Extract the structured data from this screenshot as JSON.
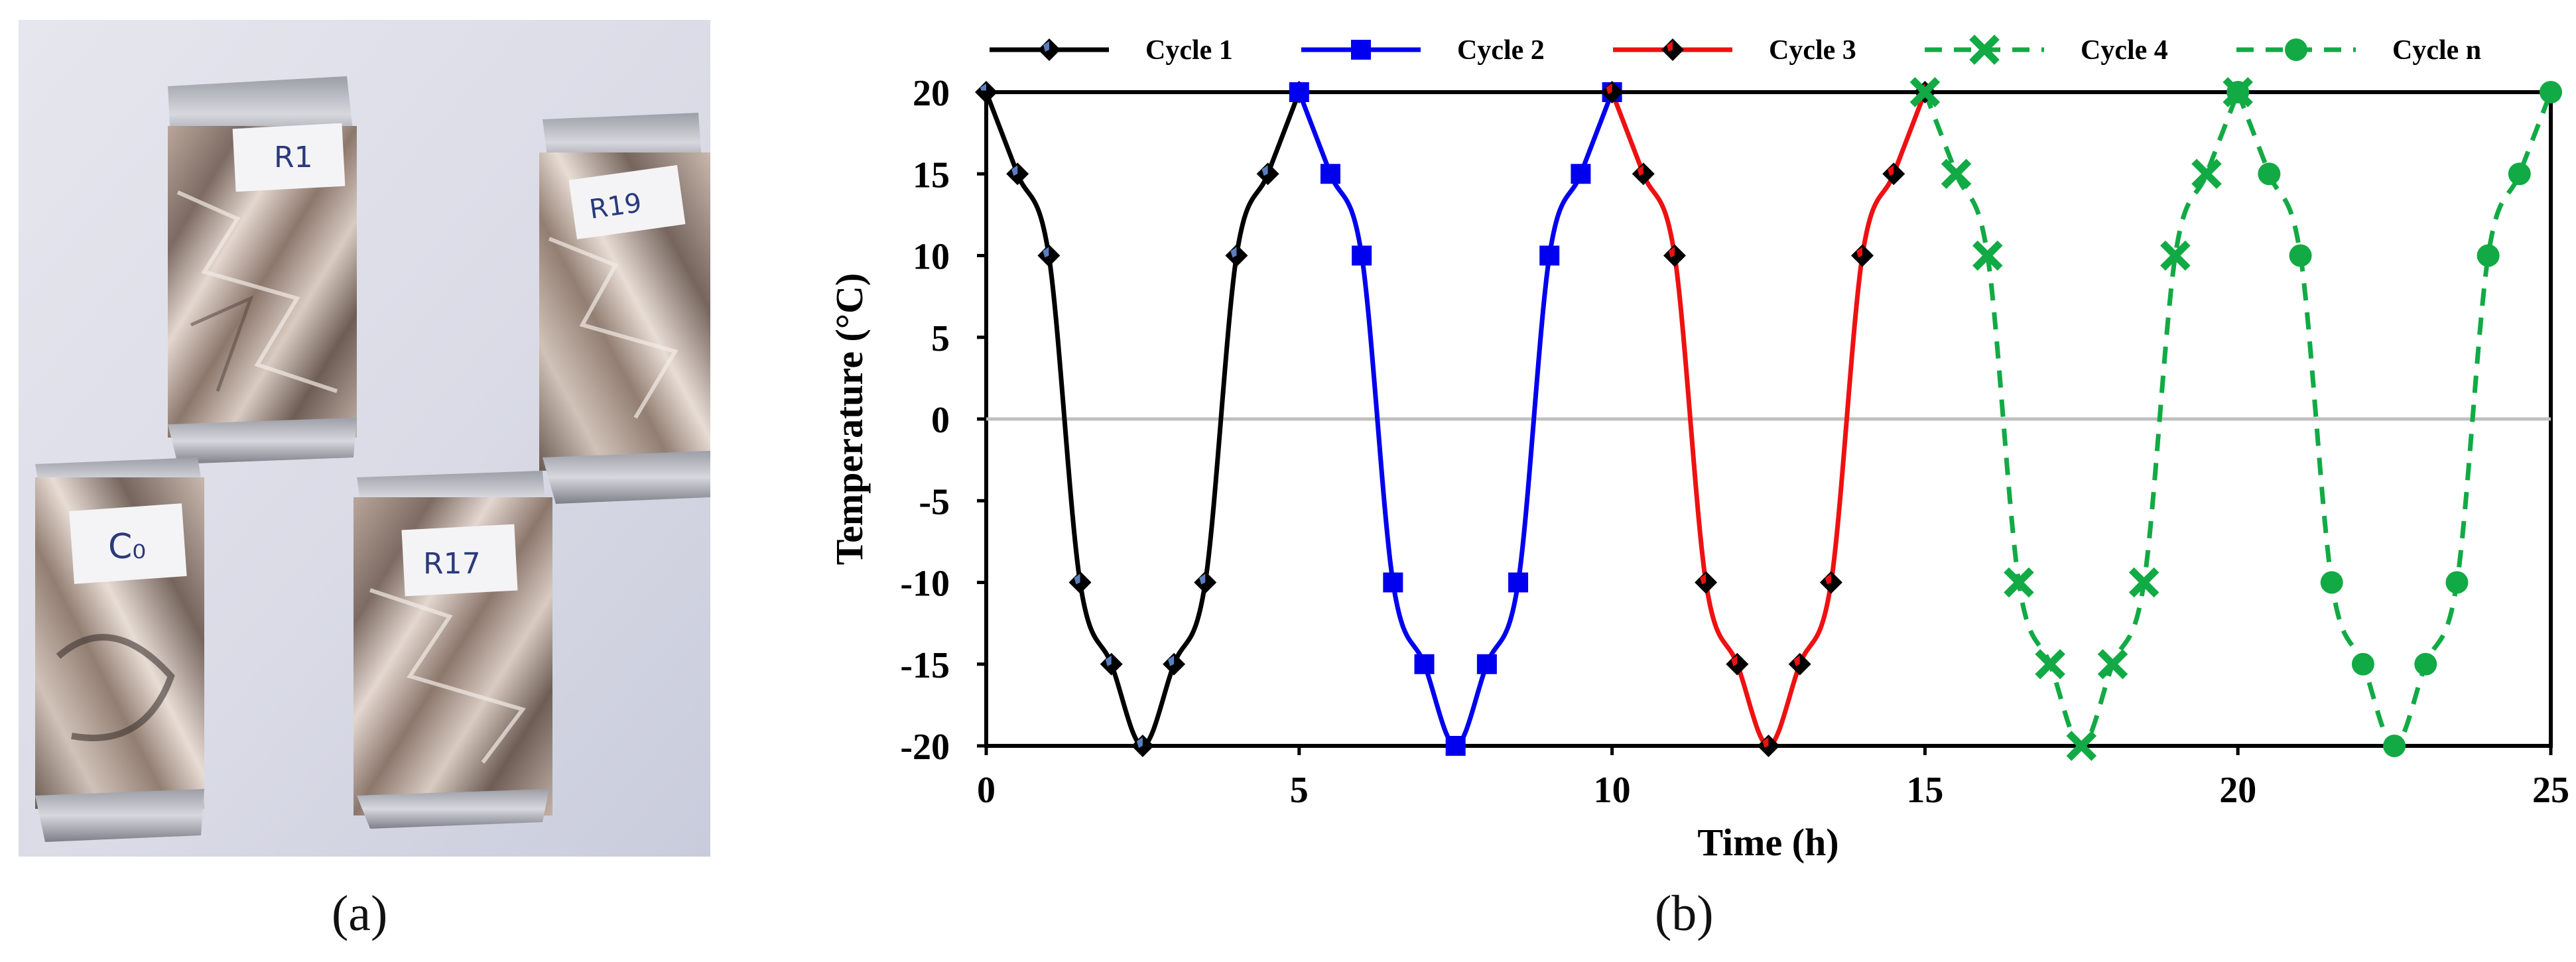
{
  "panel_a": {
    "caption": "(a)",
    "sample_labels": [
      "R1",
      "R19",
      "C₀",
      "R17"
    ]
  },
  "panel_b": {
    "caption": "(b)"
  },
  "colors": {
    "cycle1": "#000000",
    "cycle2": "#0000ee",
    "cycle3": "#ee1111",
    "cycle4": "#11aa44",
    "cyclen": "#11aa44",
    "marker_blue": "#5a7fbf",
    "zero_line": "#bfbfbf"
  },
  "chart_data": {
    "type": "line",
    "title": "",
    "xlabel": "Time (h)",
    "ylabel": "Temperature (°C)",
    "xlim": [
      0,
      25
    ],
    "ylim": [
      -20,
      20
    ],
    "xticks": [
      0,
      5,
      10,
      15,
      20,
      25
    ],
    "yticks": [
      20,
      15,
      10,
      5,
      0,
      -5,
      -10,
      -15,
      -20
    ],
    "legend_position": "top",
    "series": [
      {
        "name": "Cycle 1",
        "color": "#000000",
        "dash": "solid",
        "marker": "diamond",
        "marker_fill": "#000000",
        "marker_inner": "#5a7fbf",
        "x": [
          0,
          0.5,
          1,
          1.5,
          2,
          2.5,
          3,
          3.5,
          4,
          4.5,
          5
        ],
        "y": [
          20,
          15,
          10,
          -10,
          -15,
          -20,
          -15,
          -10,
          10,
          15,
          20
        ]
      },
      {
        "name": "Cycle 2",
        "color": "#0000ee",
        "dash": "solid",
        "marker": "square",
        "x": [
          5,
          5.5,
          6,
          6.5,
          7,
          7.5,
          8,
          8.5,
          9,
          9.5,
          10
        ],
        "y": [
          20,
          15,
          10,
          -10,
          -15,
          -20,
          -15,
          -10,
          10,
          15,
          20
        ]
      },
      {
        "name": "Cycle 3",
        "color": "#ee1111",
        "dash": "solid",
        "marker": "diamond",
        "marker_fill": "#000000",
        "marker_inner": "#ee1111",
        "x": [
          10,
          10.5,
          11,
          11.5,
          12,
          12.5,
          13,
          13.5,
          14,
          14.5,
          15
        ],
        "y": [
          20,
          15,
          10,
          -10,
          -15,
          -20,
          -15,
          -10,
          10,
          15,
          20
        ]
      },
      {
        "name": "Cycle 4",
        "color": "#11aa44",
        "dash": "dashed",
        "marker": "x",
        "x": [
          15,
          15.5,
          16,
          16.5,
          17,
          17.5,
          18,
          18.5,
          19,
          19.5,
          20
        ],
        "y": [
          20,
          15,
          10,
          -10,
          -15,
          -20,
          -15,
          -10,
          10,
          15,
          20
        ]
      },
      {
        "name": "Cycle n",
        "color": "#11aa44",
        "dash": "dashed",
        "marker": "circle",
        "x": [
          20,
          20.5,
          21,
          21.5,
          22,
          22.5,
          23,
          23.5,
          24,
          24.5,
          25
        ],
        "y": [
          20,
          15,
          10,
          -10,
          -15,
          -20,
          -15,
          -10,
          10,
          15,
          20
        ]
      }
    ]
  }
}
